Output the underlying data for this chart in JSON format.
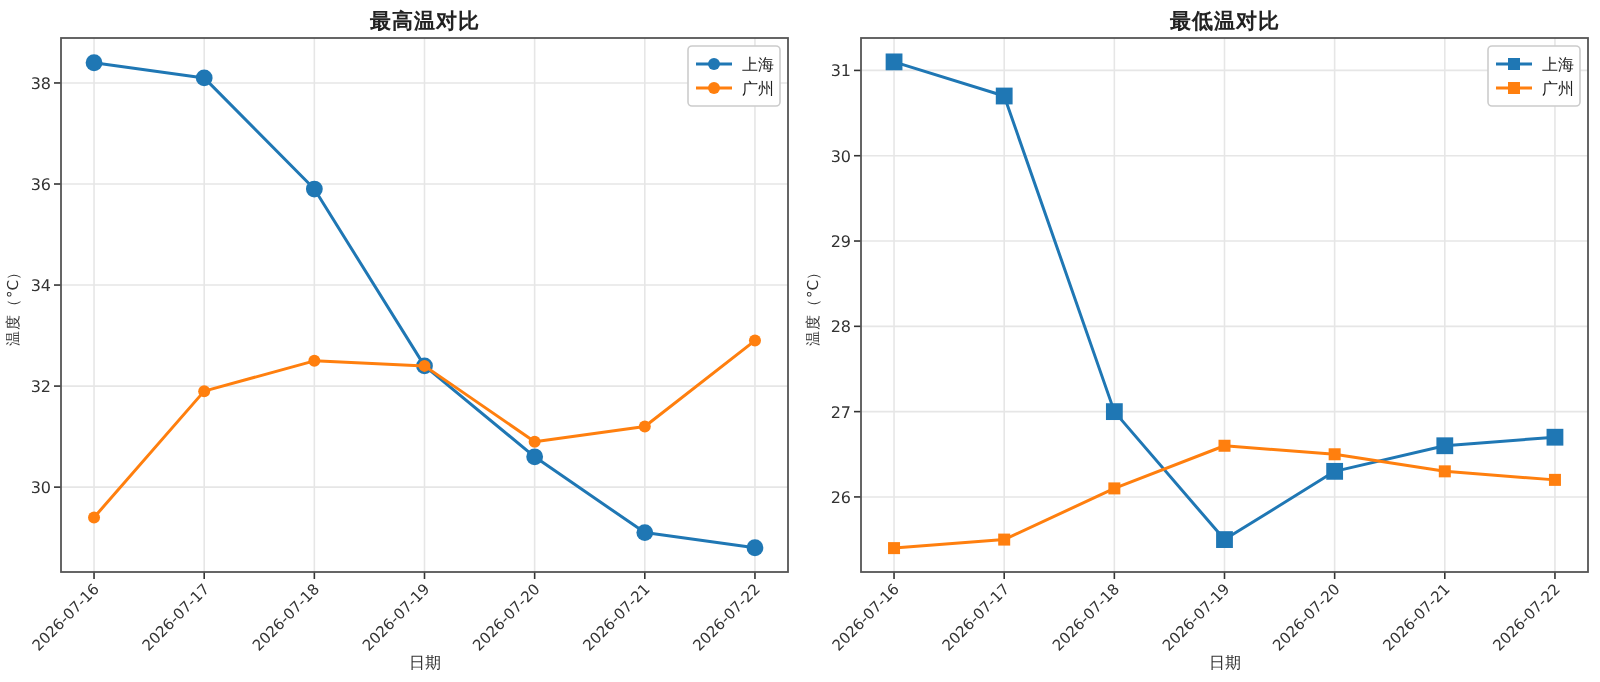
{
  "chart_data": [
    {
      "type": "line",
      "title": "最高温对比",
      "xlabel": "日期",
      "ylabel": "温度（°C）",
      "categories": [
        "2026-07-16",
        "2026-07-17",
        "2026-07-18",
        "2026-07-19",
        "2026-07-20",
        "2026-07-21",
        "2026-07-22"
      ],
      "ylim": [
        28.32,
        38.89
      ],
      "yticks": [
        30,
        32,
        34,
        36,
        38
      ],
      "grid": true,
      "legend": "top right",
      "marker": "circle",
      "series": [
        {
          "name": "上海",
          "color": "#1f77b4",
          "values": [
            38.4,
            38.1,
            35.9,
            32.4,
            30.6,
            29.1,
            28.8
          ]
        },
        {
          "name": "广州",
          "color": "#ff7f0e",
          "values": [
            29.4,
            31.9,
            32.5,
            32.4,
            30.9,
            31.2,
            32.9
          ]
        }
      ]
    },
    {
      "type": "line",
      "title": "最低温对比",
      "xlabel": "日期",
      "ylabel": "温度（°C）",
      "categories": [
        "2026-07-16",
        "2026-07-17",
        "2026-07-18",
        "2026-07-19",
        "2026-07-20",
        "2026-07-21",
        "2026-07-22"
      ],
      "ylim": [
        25.12,
        31.38
      ],
      "yticks": [
        26,
        27,
        28,
        29,
        30,
        31
      ],
      "grid": true,
      "legend": "top right",
      "marker": "square",
      "series": [
        {
          "name": "上海",
          "color": "#1f77b4",
          "values": [
            31.1,
            30.7,
            27.0,
            25.5,
            26.3,
            26.6,
            26.7
          ]
        },
        {
          "name": "广州",
          "color": "#ff7f0e",
          "values": [
            25.4,
            25.5,
            26.1,
            26.6,
            26.5,
            26.3,
            26.2
          ]
        }
      ]
    }
  ]
}
